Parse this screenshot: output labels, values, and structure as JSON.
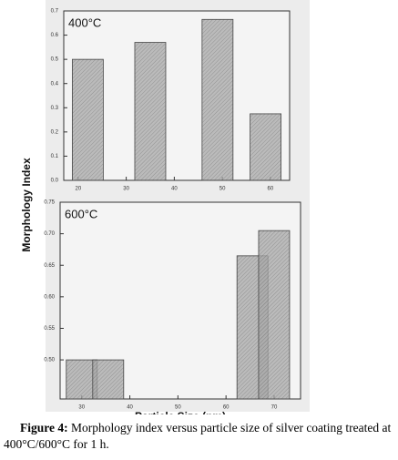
{
  "chart_data": [
    {
      "type": "bar",
      "label": "400°C",
      "y_label": "Morphology Index",
      "x": [
        22,
        35,
        49,
        59
      ],
      "values": [
        0.5,
        0.57,
        0.665,
        0.275
      ],
      "color": "#a8a8a8",
      "xlim": [
        17,
        64
      ],
      "xticks": [
        20,
        30,
        40,
        50,
        60
      ],
      "ylim": [
        0,
        0.7
      ],
      "yticks": [
        {
          "value": 0,
          "label": "0.0"
        },
        0.1,
        0.2,
        0.3,
        0.4,
        0.5,
        0.6,
        0.7
      ]
    },
    {
      "type": "bar",
      "label": "600°C",
      "x_label": "Particle Size (nm)",
      "x": [
        30,
        35.5,
        65.5,
        70
      ],
      "values": [
        0.5,
        0.5,
        0.665,
        0.705
      ],
      "color": "#a8a8a8",
      "xlim": [
        25.5,
        75.5
      ],
      "xticks": [
        30,
        40,
        50,
        60,
        70
      ],
      "ylim": [
        0.438,
        0.75
      ],
      "yticks": [
        {
          "value": 0.5,
          "label": "0.50"
        },
        0.55,
        {
          "value": 0.6,
          "label": "0.60"
        },
        0.65,
        {
          "value": 0.7,
          "label": "0.70"
        },
        0.75
      ]
    }
  ],
  "caption": {
    "label": "Figure 4:",
    "text": "Morphology index versus particle size of silver coating treated at 400°C/600°C for 1 h."
  }
}
